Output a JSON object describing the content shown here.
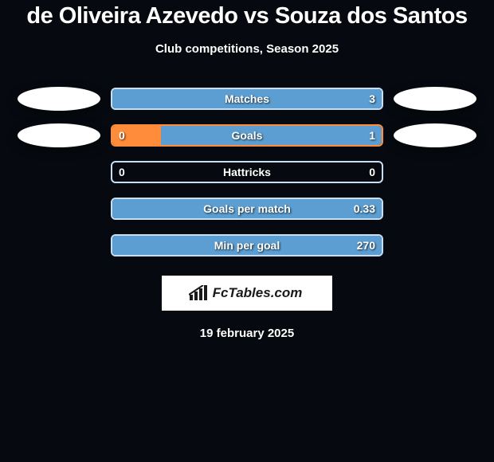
{
  "title": "de Oliveira Azevedo vs Souza dos Santos",
  "subtitle": "Club competitions, Season 2025",
  "date": "19 february 2025",
  "logo_text": "FcTables.com",
  "colors": {
    "left_bar": "#ff8c3a",
    "left_bar_alt": "#ffa85c",
    "right_bar": "#5c9ed1",
    "right_bar_light": "#9ec7e6",
    "text": "#ffffff",
    "border_light": "#c7dff2",
    "border_orange": "#ff8c3a",
    "bg": "#060a10"
  },
  "stats": [
    {
      "label": "Matches",
      "left_val": "",
      "right_val": "3",
      "left_pct": 0,
      "right_pct": 100,
      "fill_color": "#5c9ed1",
      "border_color": "#c7dff2",
      "show_left_avatar": true,
      "show_right_avatar": true
    },
    {
      "label": "Goals",
      "left_val": "0",
      "right_val": "1",
      "left_pct": 18,
      "right_pct": 82,
      "fill_color": "#5c9ed1",
      "left_color": "#ff8c3a",
      "border_color": "#ff8c3a",
      "show_left_avatar": true,
      "show_right_avatar": true
    },
    {
      "label": "Hattricks",
      "left_val": "0",
      "right_val": "0",
      "left_pct": 0,
      "right_pct": 0,
      "fill_color": "#5c9ed1",
      "border_color": "#c7dff2",
      "show_left_avatar": false,
      "show_right_avatar": false
    },
    {
      "label": "Goals per match",
      "left_val": "",
      "right_val": "0.33",
      "left_pct": 0,
      "right_pct": 100,
      "fill_color": "#5c9ed1",
      "border_color": "#c7dff2",
      "show_left_avatar": false,
      "show_right_avatar": false
    },
    {
      "label": "Min per goal",
      "left_val": "",
      "right_val": "270",
      "left_pct": 0,
      "right_pct": 100,
      "fill_color": "#5c9ed1",
      "border_color": "#c7dff2",
      "show_left_avatar": false,
      "show_right_avatar": false
    }
  ]
}
